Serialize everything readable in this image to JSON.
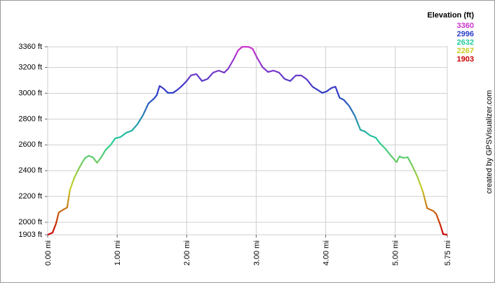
{
  "chart_data": {
    "type": "line",
    "credit": "created by GPSVisualizer.com",
    "legend_title": "Elevation (ft)",
    "color_scale": [
      {
        "value": 3360,
        "color": "#cc33cc"
      },
      {
        "value": 2996,
        "color": "#2a3cc8"
      },
      {
        "value": 2632,
        "color": "#22cc99"
      },
      {
        "value": 2267,
        "color": "#c8cc22"
      },
      {
        "value": 1903,
        "color": "#cc0000"
      }
    ],
    "x": [
      0,
      0.07,
      0.12,
      0.16,
      0.24,
      0.28,
      0.32,
      0.38,
      0.44,
      0.5,
      0.54,
      0.59,
      0.65,
      0.71,
      0.77,
      0.83,
      0.91,
      0.97,
      1.05,
      1.13,
      1.21,
      1.29,
      1.37,
      1.45,
      1.53,
      1.57,
      1.61,
      1.67,
      1.73,
      1.8,
      1.86,
      1.92,
      2.0,
      2.06,
      2.14,
      2.22,
      2.3,
      2.38,
      2.46,
      2.54,
      2.6,
      2.68,
      2.74,
      2.8,
      2.89,
      2.95,
      3.01,
      3.09,
      3.17,
      3.25,
      3.33,
      3.41,
      3.49,
      3.57,
      3.65,
      3.73,
      3.81,
      3.89,
      3.95,
      4.01,
      4.08,
      4.14,
      4.2,
      4.26,
      4.34,
      4.42,
      4.5,
      4.56,
      4.64,
      4.72,
      4.78,
      4.86,
      4.94,
      5.02,
      5.06,
      5.12,
      5.18,
      5.24,
      5.32,
      5.4,
      5.46,
      5.55,
      5.59,
      5.65,
      5.69,
      5.75
    ],
    "values": [
      1903,
      1919,
      1990,
      2076,
      2103,
      2114,
      2250,
      2342,
      2407,
      2466,
      2499,
      2515,
      2504,
      2461,
      2504,
      2558,
      2602,
      2650,
      2661,
      2694,
      2710,
      2759,
      2829,
      2921,
      2959,
      2986,
      3057,
      3035,
      3003,
      3003,
      3024,
      3051,
      3095,
      3138,
      3149,
      3095,
      3111,
      3160,
      3176,
      3160,
      3192,
      3268,
      3333,
      3360,
      3360,
      3344,
      3279,
      3203,
      3165,
      3176,
      3160,
      3111,
      3095,
      3138,
      3138,
      3106,
      3051,
      3024,
      3003,
      3013,
      3040,
      3051,
      2965,
      2949,
      2900,
      2824,
      2716,
      2705,
      2672,
      2656,
      2613,
      2569,
      2515,
      2466,
      2510,
      2499,
      2504,
      2445,
      2353,
      2234,
      2109,
      2087,
      2065,
      1979,
      1908,
      1903
    ],
    "xlim": [
      0,
      5.75
    ],
    "xticks": [
      {
        "value": 0,
        "label": "0.00 mi"
      },
      {
        "value": 1,
        "label": "1.00 mi"
      },
      {
        "value": 2,
        "label": "2.00 mi"
      },
      {
        "value": 3,
        "label": "3.00 mi"
      },
      {
        "value": 4,
        "label": "4.00 mi"
      },
      {
        "value": 5,
        "label": "5.00 mi"
      },
      {
        "value": 5.75,
        "label": "5.75 mi"
      }
    ],
    "ylim": [
      1903,
      3360
    ],
    "yticks": [
      {
        "value": 1903,
        "label": "1903 ft"
      },
      {
        "value": 2000,
        "label": "2000 ft"
      },
      {
        "value": 2200,
        "label": "2200 ft"
      },
      {
        "value": 2400,
        "label": "2400 ft"
      },
      {
        "value": 2600,
        "label": "2600 ft"
      },
      {
        "value": 2800,
        "label": "2800 ft"
      },
      {
        "value": 3000,
        "label": "3000 ft"
      },
      {
        "value": 3200,
        "label": "3200 ft"
      },
      {
        "value": 3360,
        "label": "3360 ft"
      }
    ],
    "grid": true
  }
}
